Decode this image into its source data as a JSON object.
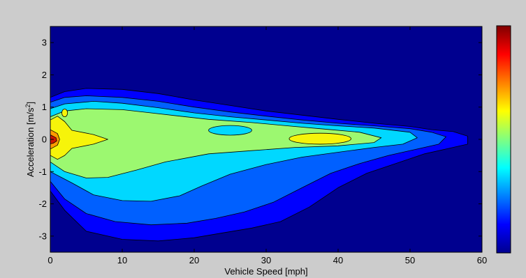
{
  "chart_data": {
    "type": "heatmap",
    "style": "filled-contour",
    "colormap": "jet",
    "xlabel": "Vehicle Speed [mph]",
    "ylabel": "Acceleration [m/s",
    "ylabel_superscript": "2",
    "ylabel_close": "]",
    "xlim": [
      0,
      60
    ],
    "ylim": [
      -3.5,
      3.5
    ],
    "xticks": [
      {
        "value": 0,
        "label": "0"
      },
      {
        "value": 10,
        "label": "10"
      },
      {
        "value": 20,
        "label": "20"
      },
      {
        "value": 30,
        "label": "30"
      },
      {
        "value": 40,
        "label": "40"
      },
      {
        "value": 50,
        "label": "50"
      },
      {
        "value": 60,
        "label": "60"
      }
    ],
    "yticks": [
      {
        "value": 3,
        "label": "3"
      },
      {
        "value": 2,
        "label": "2"
      },
      {
        "value": 1,
        "label": "1"
      },
      {
        "value": 0,
        "label": "0"
      },
      {
        "value": -1,
        "label": "-1"
      },
      {
        "value": -2,
        "label": "-2"
      },
      {
        "value": -3,
        "label": "-3"
      }
    ],
    "grid": false,
    "colorbar": "right, no tick labels",
    "contour_levels": [
      {
        "level": 1,
        "color": "#0000ff",
        "outline": [
          [
            0,
            1.3
          ],
          [
            2,
            1.48
          ],
          [
            5,
            1.58
          ],
          [
            10,
            1.55
          ],
          [
            15,
            1.42
          ],
          [
            20,
            1.22
          ],
          [
            25,
            1.05
          ],
          [
            30,
            0.88
          ],
          [
            35,
            0.75
          ],
          [
            40,
            0.62
          ],
          [
            45,
            0.5
          ],
          [
            50,
            0.4
          ],
          [
            53,
            0.3
          ],
          [
            56,
            0.24
          ],
          [
            58,
            0.1
          ],
          [
            58,
            -0.15
          ],
          [
            55,
            -0.3
          ],
          [
            52,
            -0.45
          ],
          [
            48,
            -0.75
          ],
          [
            44,
            -1.05
          ],
          [
            40,
            -1.5
          ],
          [
            36,
            -2.1
          ],
          [
            32,
            -2.55
          ],
          [
            28,
            -2.75
          ],
          [
            24,
            -2.9
          ],
          [
            20,
            -3.05
          ],
          [
            15,
            -3.15
          ],
          [
            10,
            -3.1
          ],
          [
            5,
            -2.85
          ],
          [
            2,
            -2.2
          ],
          [
            0,
            -1.6
          ]
        ]
      },
      {
        "level": 2,
        "color": "#0060ff",
        "outline": [
          [
            0,
            1.15
          ],
          [
            2,
            1.3
          ],
          [
            5,
            1.35
          ],
          [
            10,
            1.3
          ],
          [
            15,
            1.18
          ],
          [
            20,
            1.0
          ],
          [
            25,
            0.85
          ],
          [
            30,
            0.72
          ],
          [
            35,
            0.6
          ],
          [
            40,
            0.5
          ],
          [
            45,
            0.42
          ],
          [
            50,
            0.33
          ],
          [
            53,
            0.22
          ],
          [
            55,
            0.08
          ],
          [
            54,
            -0.15
          ],
          [
            51,
            -0.3
          ],
          [
            47,
            -0.5
          ],
          [
            43,
            -0.75
          ],
          [
            39,
            -1.05
          ],
          [
            35,
            -1.5
          ],
          [
            31,
            -1.95
          ],
          [
            27,
            -2.25
          ],
          [
            23,
            -2.45
          ],
          [
            19,
            -2.6
          ],
          [
            14,
            -2.65
          ],
          [
            9,
            -2.55
          ],
          [
            5,
            -2.3
          ],
          [
            2,
            -1.85
          ],
          [
            0,
            -1.3
          ]
        ]
      },
      {
        "level": 3,
        "color": "#00d8ff",
        "outline": [
          [
            0,
            0.95
          ],
          [
            2,
            1.1
          ],
          [
            6,
            1.18
          ],
          [
            10,
            1.12
          ],
          [
            15,
            0.98
          ],
          [
            20,
            0.82
          ],
          [
            25,
            0.7
          ],
          [
            30,
            0.6
          ],
          [
            35,
            0.5
          ],
          [
            40,
            0.42
          ],
          [
            45,
            0.35
          ],
          [
            50,
            0.22
          ],
          [
            51,
            0.05
          ],
          [
            49,
            -0.15
          ],
          [
            45,
            -0.25
          ],
          [
            40,
            -0.4
          ],
          [
            35,
            -0.55
          ],
          [
            30,
            -0.78
          ],
          [
            25,
            -1.08
          ],
          [
            21,
            -1.45
          ],
          [
            18,
            -1.75
          ],
          [
            14,
            -1.92
          ],
          [
            10,
            -1.9
          ],
          [
            6,
            -1.72
          ],
          [
            3,
            -1.35
          ],
          [
            0,
            -1.0
          ]
        ]
      },
      {
        "level": 4,
        "color": "#9cf870",
        "outline": [
          [
            0,
            0.7
          ],
          [
            2,
            0.88
          ],
          [
            5,
            0.95
          ],
          [
            10,
            0.92
          ],
          [
            14,
            0.82
          ],
          [
            18,
            0.72
          ],
          [
            22,
            0.62
          ],
          [
            28,
            0.52
          ],
          [
            33,
            0.42
          ],
          [
            38,
            0.32
          ],
          [
            43,
            0.22
          ],
          [
            46,
            0.05
          ],
          [
            45,
            -0.1
          ],
          [
            40,
            -0.2
          ],
          [
            34,
            -0.25
          ],
          [
            28,
            -0.35
          ],
          [
            22,
            -0.45
          ],
          [
            16,
            -0.7
          ],
          [
            12,
            -0.95
          ],
          [
            8,
            -1.18
          ],
          [
            5,
            -1.2
          ],
          [
            2,
            -1.0
          ],
          [
            0,
            -0.7
          ]
        ]
      },
      {
        "level": 5,
        "color": "#f6f40a",
        "outline": [
          [
            0,
            0.6
          ],
          [
            1,
            0.72
          ],
          [
            2,
            0.55
          ],
          [
            3,
            0.28
          ],
          [
            6,
            0.15
          ],
          [
            8,
            0.0
          ],
          [
            6,
            -0.15
          ],
          [
            3,
            -0.28
          ],
          [
            2,
            -0.5
          ],
          [
            1,
            -0.62
          ],
          [
            0,
            -0.5
          ]
        ]
      },
      {
        "level": 6,
        "color": "#ff9a00",
        "outline": [
          [
            0,
            0.3
          ],
          [
            1,
            0.18
          ],
          [
            1.3,
            0
          ],
          [
            1,
            -0.18
          ],
          [
            0,
            -0.3
          ]
        ]
      },
      {
        "level": 7,
        "color": "#cc1400",
        "outline": [
          [
            0,
            0.14
          ],
          [
            0.8,
            0.05
          ],
          [
            0.9,
            -0.05
          ],
          [
            0.4,
            -0.12
          ],
          [
            0,
            -0.14
          ]
        ]
      }
    ],
    "islands": [
      {
        "color": "#f6f40a",
        "center": [
          37.5,
          0.02
        ],
        "radius": [
          4.3,
          0.17
        ]
      },
      {
        "color": "#00d8ff",
        "center": [
          25.0,
          0.28
        ],
        "radius": [
          3.0,
          0.15
        ]
      },
      {
        "color": "#f6f40a",
        "center": [
          2.0,
          0.82
        ],
        "radius": [
          0.4,
          0.12
        ]
      }
    ],
    "background_color": "#00008f",
    "colorbar_colors": [
      "#00008f",
      "#0000ff",
      "#0080ff",
      "#00ffff",
      "#80ff80",
      "#ffff00",
      "#ff8000",
      "#ff0000",
      "#800000"
    ]
  }
}
